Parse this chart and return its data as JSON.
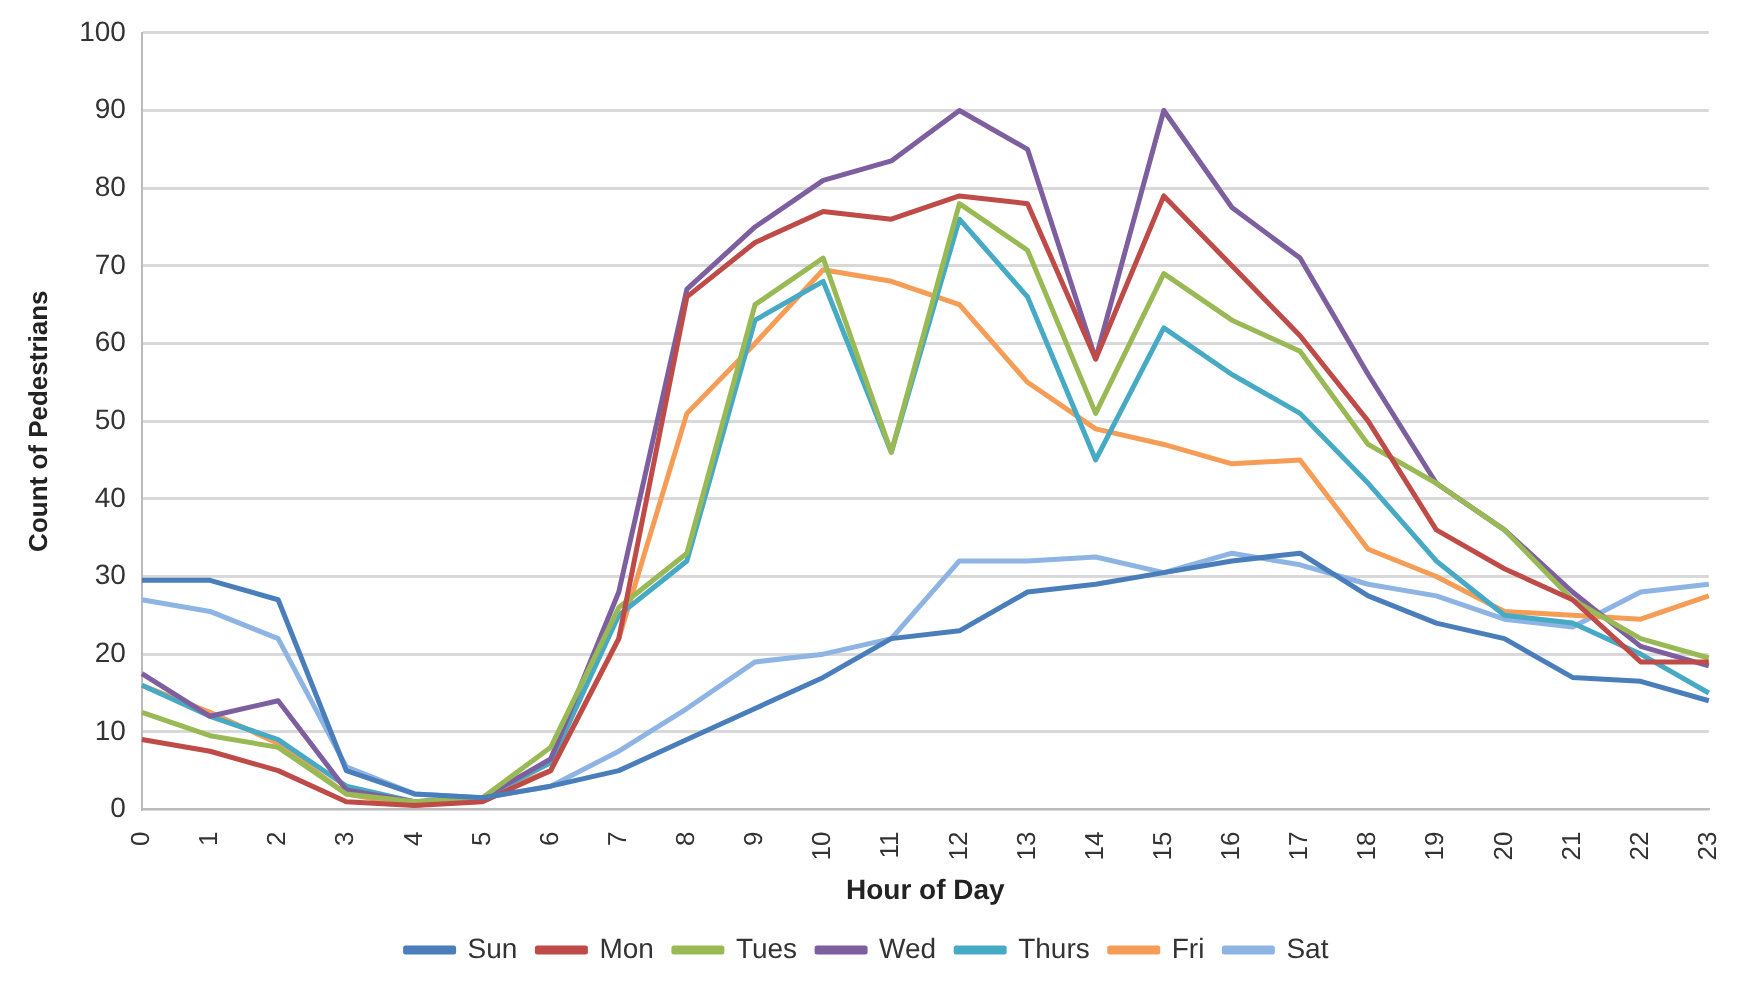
{
  "chart_data": {
    "type": "line",
    "xlabel": "Hour of Day",
    "ylabel": "Count of Pedestrians",
    "categories": [
      "0",
      "1",
      "2",
      "3",
      "4",
      "5",
      "6",
      "7",
      "8",
      "9",
      "10",
      "11",
      "12",
      "13",
      "14",
      "15",
      "16",
      "17",
      "18",
      "19",
      "20",
      "21",
      "22",
      "23"
    ],
    "ylim": [
      0,
      100
    ],
    "yticks": [
      0,
      10,
      20,
      30,
      40,
      50,
      60,
      70,
      80,
      90,
      100
    ],
    "grid": "y",
    "legend": "bottom",
    "marker": "none",
    "line_style": "solid",
    "series": [
      {
        "name": "Sun",
        "color": "#4a7ebb",
        "values": [
          29.5,
          29.5,
          27,
          5,
          2,
          1.5,
          3,
          5,
          9,
          13,
          17,
          22,
          23,
          28,
          29,
          30.5,
          32,
          33,
          27.5,
          24,
          22,
          17,
          16.5,
          14
        ]
      },
      {
        "name": "Mon",
        "color": "#be4b48",
        "values": [
          9,
          7.5,
          5,
          1,
          0.5,
          1,
          5,
          22,
          66,
          73,
          77,
          76,
          79,
          78,
          58,
          79,
          70,
          61,
          50,
          36,
          31,
          27,
          19,
          19
        ]
      },
      {
        "name": "Tues",
        "color": "#98b954",
        "values": [
          12.5,
          9.5,
          8,
          2,
          1,
          1.5,
          8,
          26,
          33,
          65,
          71,
          46,
          78,
          72,
          51,
          69,
          63,
          59,
          47,
          42,
          36,
          27,
          22,
          19.5
        ]
      },
      {
        "name": "Wed",
        "color": "#7d5fa0",
        "values": [
          17.5,
          12,
          14,
          2.5,
          1,
          1.5,
          6.5,
          28,
          67,
          75,
          81,
          83.5,
          90,
          85,
          58,
          90,
          77.5,
          71,
          56,
          42,
          36,
          28,
          21,
          18.5
        ]
      },
      {
        "name": "Thurs",
        "color": "#46aac5",
        "values": [
          16,
          12,
          9,
          3,
          1,
          1.5,
          6,
          25,
          32,
          63,
          68,
          46,
          76,
          66,
          45,
          62,
          56,
          51,
          42,
          32,
          25,
          24,
          20,
          15
        ]
      },
      {
        "name": "Fri",
        "color": "#f59d56",
        "values": [
          16,
          12.5,
          8.5,
          2,
          0.5,
          1.5,
          5,
          22,
          51,
          60,
          69.5,
          68,
          65,
          55,
          49,
          47,
          44.5,
          45,
          33.5,
          30,
          25.5,
          25,
          24.5,
          27.5
        ]
      },
      {
        "name": "Sat",
        "color": "#8eb4e3",
        "values": [
          27,
          25.5,
          22,
          5.5,
          2,
          1.5,
          3,
          7.5,
          13,
          19,
          20,
          22,
          32,
          32,
          32.5,
          30.5,
          33,
          31.5,
          29,
          27.5,
          24.5,
          23.5,
          28,
          29
        ]
      }
    ]
  }
}
